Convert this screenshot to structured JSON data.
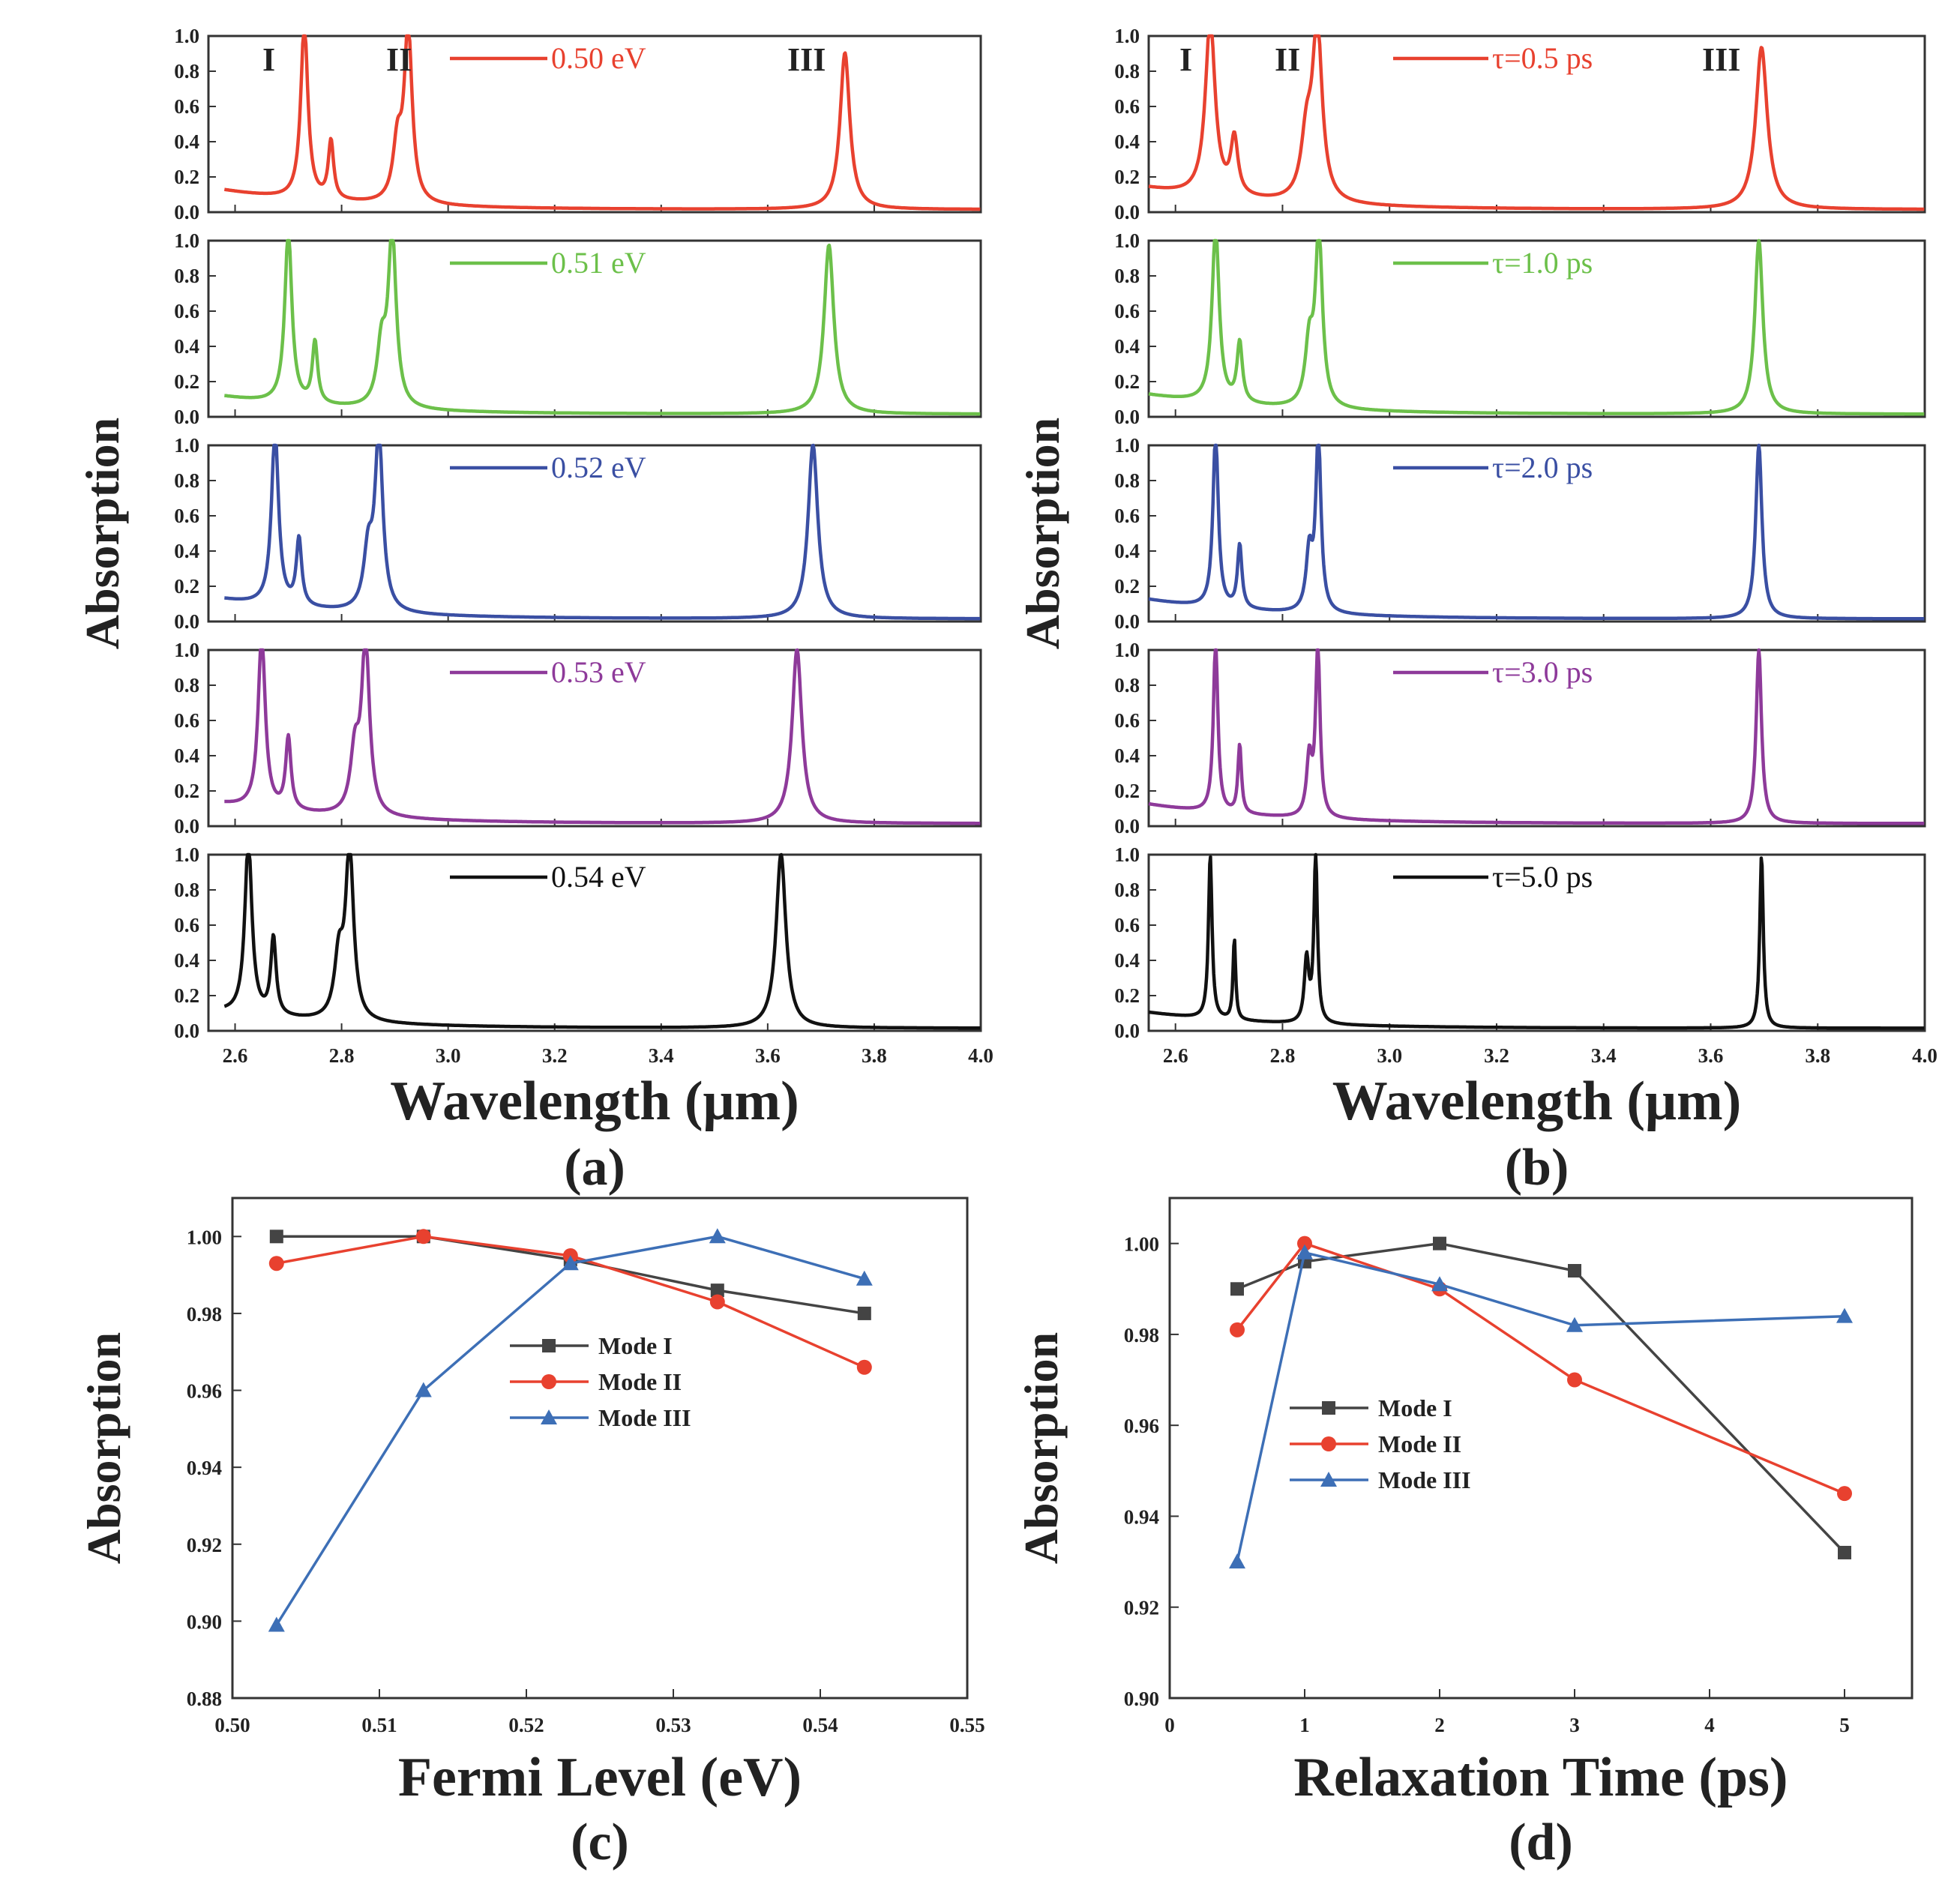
{
  "chart_data": [
    {
      "id": "a",
      "type": "line",
      "panel_label": "(a)",
      "xlabel": "Wavelength  (μm)",
      "ylabel": "Absorption",
      "xlim": [
        2.55,
        4.0
      ],
      "ylim": [
        0,
        1
      ],
      "xticks": [
        "2.6",
        "2.8",
        "3.0",
        "3.2",
        "3.4",
        "3.6",
        "3.8",
        "4.0"
      ],
      "yticks": [
        "0.0",
        "0.2",
        "0.4",
        "0.6",
        "0.8",
        "1.0"
      ],
      "mode_labels": [
        "I",
        "II",
        "III"
      ],
      "series": [
        {
          "name": "0.50 eV",
          "color": "#e8412f",
          "baseline": 0.11,
          "start": 2.58,
          "peaks": [
            [
              2.73,
              1.0,
              0.008
            ],
            [
              2.78,
              0.33,
              0.006
            ],
            [
              2.905,
              0.32,
              0.01
            ],
            [
              2.925,
              0.98,
              0.009
            ],
            [
              3.745,
              0.89,
              0.011
            ]
          ]
        },
        {
          "name": "0.51 eV",
          "color": "#6cc04a",
          "baseline": 0.1,
          "start": 2.58,
          "peaks": [
            [
              2.7,
              0.98,
              0.008
            ],
            [
              2.75,
              0.35,
              0.006
            ],
            [
              2.875,
              0.33,
              0.01
            ],
            [
              2.895,
              0.98,
              0.009
            ],
            [
              3.715,
              0.96,
              0.011
            ]
          ]
        },
        {
          "name": "0.52 eV",
          "color": "#3a4fa3",
          "baseline": 0.11,
          "start": 2.58,
          "peaks": [
            [
              2.675,
              0.99,
              0.008
            ],
            [
              2.72,
              0.38,
              0.006
            ],
            [
              2.85,
              0.32,
              0.01
            ],
            [
              2.87,
              0.99,
              0.009
            ],
            [
              3.685,
              0.99,
              0.011
            ]
          ]
        },
        {
          "name": "0.53 eV",
          "color": "#8e3a9a",
          "baseline": 0.11,
          "start": 2.58,
          "peaks": [
            [
              2.65,
              0.99,
              0.008
            ],
            [
              2.7,
              0.41,
              0.006
            ],
            [
              2.825,
              0.34,
              0.01
            ],
            [
              2.845,
              0.98,
              0.009
            ],
            [
              3.655,
              0.99,
              0.011
            ]
          ]
        },
        {
          "name": "0.54 eV",
          "color": "#111111",
          "baseline": 0.09,
          "start": 2.58,
          "peaks": [
            [
              2.625,
              0.99,
              0.008
            ],
            [
              2.672,
              0.44,
              0.006
            ],
            [
              2.795,
              0.34,
              0.01
            ],
            [
              2.815,
              0.97,
              0.009
            ],
            [
              3.625,
              0.99,
              0.011
            ]
          ]
        }
      ]
    },
    {
      "id": "b",
      "type": "line",
      "panel_label": "(b)",
      "xlabel": "Wavelength  (μm)",
      "ylabel": "Absorption",
      "xlim": [
        2.55,
        4.0
      ],
      "ylim": [
        0,
        1
      ],
      "xticks": [
        "2.6",
        "2.8",
        "3.0",
        "3.2",
        "3.4",
        "3.6",
        "3.8",
        "4.0"
      ],
      "yticks": [
        "0.0",
        "0.2",
        "0.4",
        "0.6",
        "0.8",
        "1.0"
      ],
      "mode_labels": [
        "I",
        "II",
        "III"
      ],
      "series": [
        {
          "name": "τ=0.5 ps",
          "color": "#e8412f",
          "baseline": 0.12,
          "start": 2.55,
          "peaks": [
            [
              2.665,
              1.0,
              0.011
            ],
            [
              2.71,
              0.32,
              0.008
            ],
            [
              2.845,
              0.34,
              0.012
            ],
            [
              2.865,
              0.98,
              0.011
            ],
            [
              3.695,
              0.92,
              0.013
            ]
          ]
        },
        {
          "name": "τ=1.0 ps",
          "color": "#6cc04a",
          "baseline": 0.11,
          "start": 2.55,
          "peaks": [
            [
              2.675,
              0.99,
              0.008
            ],
            [
              2.72,
              0.34,
              0.006
            ],
            [
              2.85,
              0.34,
              0.009
            ],
            [
              2.868,
              0.98,
              0.008
            ],
            [
              3.69,
              0.99,
              0.009
            ]
          ]
        },
        {
          "name": "τ=2.0 ps",
          "color": "#3a4fa3",
          "baseline": 0.11,
          "start": 2.55,
          "peaks": [
            [
              2.675,
              0.99,
              0.006
            ],
            [
              2.72,
              0.36,
              0.005
            ],
            [
              2.85,
              0.33,
              0.007
            ],
            [
              2.867,
              0.99,
              0.006
            ],
            [
              3.69,
              0.99,
              0.007
            ]
          ]
        },
        {
          "name": "τ=3.0 ps",
          "color": "#8e3a9a",
          "baseline": 0.11,
          "start": 2.55,
          "peaks": [
            [
              2.675,
              0.98,
              0.005
            ],
            [
              2.72,
              0.39,
              0.004
            ],
            [
              2.85,
              0.33,
              0.006
            ],
            [
              2.866,
              0.97,
              0.005
            ],
            [
              3.69,
              0.99,
              0.006
            ]
          ]
        },
        {
          "name": "τ=5.0 ps",
          "color": "#111111",
          "baseline": 0.09,
          "start": 2.55,
          "peaks": [
            [
              2.665,
              0.93,
              0.004
            ],
            [
              2.71,
              0.46,
              0.003
            ],
            [
              2.845,
              0.36,
              0.005
            ],
            [
              2.862,
              0.95,
              0.004
            ],
            [
              3.695,
              0.98,
              0.004
            ]
          ]
        }
      ]
    },
    {
      "id": "c",
      "type": "line",
      "panel_label": "(c)",
      "xlabel": "Fermi  Level  (eV)",
      "ylabel": "Absorption",
      "xlim": [
        0.5,
        0.55
      ],
      "ylim": [
        0.88,
        1.01
      ],
      "xticks": [
        "0.50",
        "0.51",
        "0.52",
        "0.53",
        "0.54",
        "0.55"
      ],
      "yticks": [
        "0.88",
        "0.90",
        "0.92",
        "0.94",
        "0.96",
        "0.98",
        "1.00"
      ],
      "x": [
        0.503,
        0.513,
        0.523,
        0.533,
        0.543
      ],
      "series": [
        {
          "name": "Mode I",
          "color": "#444444",
          "marker": "square",
          "values": [
            1.0,
            1.0,
            0.994,
            0.986,
            0.98
          ]
        },
        {
          "name": "Mode II",
          "color": "#e8412f",
          "marker": "circle",
          "values": [
            0.993,
            1.0,
            0.995,
            0.983,
            0.966
          ]
        },
        {
          "name": "Mode III",
          "color": "#3d6fb6",
          "marker": "triangle",
          "values": [
            0.899,
            0.96,
            0.993,
            1.0,
            0.989
          ]
        }
      ]
    },
    {
      "id": "d",
      "type": "line",
      "panel_label": "(d)",
      "xlabel": "Relaxation  Time  (ps)",
      "ylabel": "Absorption",
      "xlim": [
        0,
        5.5
      ],
      "ylim": [
        0.9,
        1.01
      ],
      "xticks": [
        "0",
        "1",
        "2",
        "3",
        "4",
        "5"
      ],
      "yticks": [
        "0.90",
        "0.92",
        "0.94",
        "0.96",
        "0.98",
        "1.00"
      ],
      "x": [
        0.5,
        1,
        2,
        3,
        5
      ],
      "series": [
        {
          "name": "Mode I",
          "color": "#444444",
          "marker": "square",
          "values": [
            0.99,
            0.996,
            1.0,
            0.994,
            0.932
          ]
        },
        {
          "name": "Mode II",
          "color": "#e8412f",
          "marker": "circle",
          "values": [
            0.981,
            1.0,
            0.99,
            0.97,
            0.945
          ]
        },
        {
          "name": "Mode III",
          "color": "#3d6fb6",
          "marker": "triangle",
          "values": [
            0.93,
            0.998,
            0.991,
            0.982,
            0.984
          ]
        }
      ]
    }
  ]
}
